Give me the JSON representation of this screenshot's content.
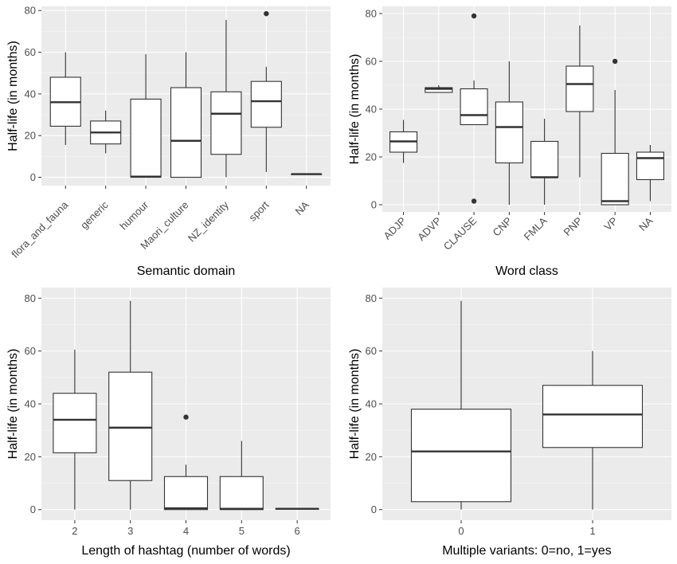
{
  "chart_data": [
    {
      "type": "boxplot",
      "xlabel": "Semantic domain",
      "ylabel": "Half-life (in months)",
      "ylim": [
        -4,
        82
      ],
      "yticks": [
        0,
        20,
        40,
        60,
        80
      ],
      "ytick_labels": [
        "0",
        "20",
        "40",
        "60",
        "80"
      ],
      "x_tick_rotation": 45,
      "categories": [
        "flora_and_fauna",
        "generic",
        "humour",
        "Maori_culture",
        "NZ_identity",
        "sport",
        "NA"
      ],
      "boxes": [
        {
          "lower": 15.5,
          "q1": 24.5,
          "median": 36,
          "q3": 48,
          "upper": 60,
          "outliers": []
        },
        {
          "lower": 11.5,
          "q1": 16,
          "median": 21.5,
          "q3": 27,
          "upper": 32,
          "outliers": []
        },
        {
          "lower": 0,
          "q1": 0,
          "median": 0.3,
          "q3": 37.5,
          "upper": 59,
          "outliers": []
        },
        {
          "lower": 0,
          "q1": 0,
          "median": 17.5,
          "q3": 43,
          "upper": 60,
          "outliers": []
        },
        {
          "lower": 0,
          "q1": 11,
          "median": 30.5,
          "q3": 41,
          "upper": 75.5,
          "outliers": []
        },
        {
          "lower": 2.5,
          "q1": 24,
          "median": 36.5,
          "q3": 46,
          "upper": 53,
          "outliers": [
            78.5
          ]
        },
        {
          "lower": 1.5,
          "q1": 1.5,
          "median": 1.5,
          "q3": 1.5,
          "upper": 1.5,
          "outliers": []
        }
      ]
    },
    {
      "type": "boxplot",
      "xlabel": "Word class",
      "ylabel": "Half-life (in months)",
      "ylim": [
        -3,
        83
      ],
      "yticks": [
        0,
        20,
        40,
        60,
        80
      ],
      "ytick_labels": [
        "0",
        "20",
        "40",
        "60",
        "80"
      ],
      "x_tick_rotation": 45,
      "categories": [
        "ADJP",
        "ADVP",
        "CLAUSE",
        "CNP",
        "FMLA",
        "PNP",
        "VP",
        "NA"
      ],
      "boxes": [
        {
          "lower": 17.5,
          "q1": 22,
          "median": 26.5,
          "q3": 30.5,
          "upper": 35.5,
          "outliers": []
        },
        {
          "lower": 47,
          "q1": 47,
          "median": 48.5,
          "q3": 49,
          "upper": 50,
          "outliers": []
        },
        {
          "lower": 33.5,
          "q1": 33.5,
          "median": 37.5,
          "q3": 48.5,
          "upper": 52,
          "outliers": [
            79,
            1.5
          ]
        },
        {
          "lower": 0,
          "q1": 17.5,
          "median": 32.5,
          "q3": 43,
          "upper": 60,
          "outliers": []
        },
        {
          "lower": 0,
          "q1": 11.5,
          "median": 11.5,
          "q3": 26.5,
          "upper": 36,
          "outliers": []
        },
        {
          "lower": 11.5,
          "q1": 39,
          "median": 50.5,
          "q3": 58,
          "upper": 75,
          "outliers": []
        },
        {
          "lower": 0,
          "q1": 0,
          "median": 1.5,
          "q3": 21.5,
          "upper": 48,
          "outliers": [
            60
          ]
        },
        {
          "lower": 1.5,
          "q1": 10.5,
          "median": 19.5,
          "q3": 22,
          "upper": 25,
          "outliers": []
        }
      ]
    },
    {
      "type": "boxplot",
      "xlabel": "Length of hashtag (number of words)",
      "ylabel": "Half-life (in months)",
      "ylim": [
        -4,
        84
      ],
      "yticks": [
        0,
        20,
        40,
        60,
        80
      ],
      "ytick_labels": [
        "0",
        "20",
        "40",
        "60",
        "80"
      ],
      "x_tick_rotation": 0,
      "categories": [
        "2",
        "3",
        "4",
        "5",
        "6"
      ],
      "boxes": [
        {
          "lower": 0,
          "q1": 21.5,
          "median": 34,
          "q3": 44,
          "upper": 60.5,
          "outliers": []
        },
        {
          "lower": 0,
          "q1": 11,
          "median": 31,
          "q3": 52,
          "upper": 79,
          "outliers": []
        },
        {
          "lower": 0,
          "q1": 0,
          "median": 0.5,
          "q3": 12.5,
          "upper": 17,
          "outliers": [
            35
          ]
        },
        {
          "lower": 0,
          "q1": 0,
          "median": 0.3,
          "q3": 12.5,
          "upper": 26,
          "outliers": []
        },
        {
          "lower": 0.3,
          "q1": 0.3,
          "median": 0.3,
          "q3": 0.3,
          "upper": 0.3,
          "outliers": []
        }
      ]
    },
    {
      "type": "boxplot",
      "xlabel": "Multiple variants: 0=no, 1=yes",
      "ylabel": "Half-life (in months)",
      "ylim": [
        -4,
        84
      ],
      "yticks": [
        0,
        20,
        40,
        60,
        80
      ],
      "ytick_labels": [
        "0",
        "20",
        "40",
        "60",
        "80"
      ],
      "x_tick_rotation": 0,
      "categories": [
        "0",
        "1"
      ],
      "boxes": [
        {
          "lower": 0,
          "q1": 3,
          "median": 22,
          "q3": 38,
          "upper": 79,
          "outliers": []
        },
        {
          "lower": 0,
          "q1": 23.5,
          "median": 36,
          "q3": 47,
          "upper": 60,
          "outliers": []
        }
      ]
    }
  ]
}
